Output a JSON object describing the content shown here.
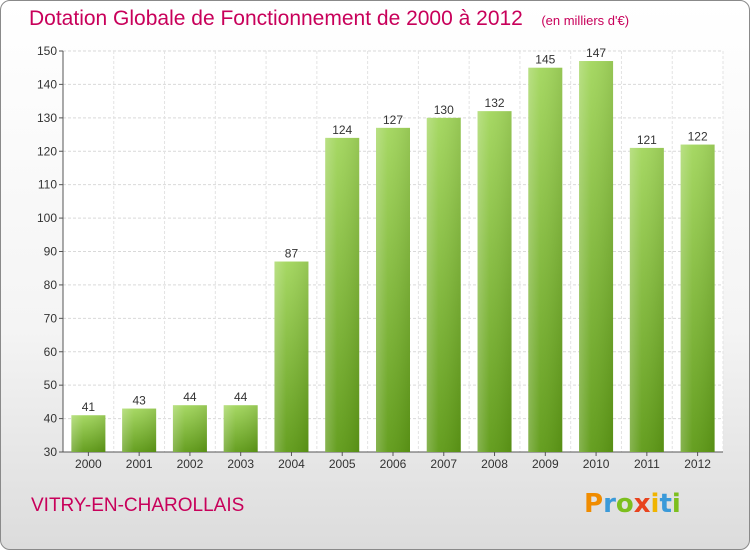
{
  "header": {
    "title": "Dotation Globale de Fonctionnement de 2000 à 2012",
    "unit": "(en milliers d'€)"
  },
  "footer": {
    "place": "VITRY-EN-CHAROLLAIS",
    "logo_letters": [
      "P",
      "r",
      "o",
      "x",
      "i",
      "t",
      "i"
    ],
    "logo_colors": [
      "#f08c00",
      "#3a9ad9",
      "#7cbf1e",
      "#e8431e",
      "#f0b400",
      "#3a9ad9",
      "#7cbf1e"
    ]
  },
  "colors": {
    "title": "#c8005a",
    "bar_light": "#a2d65c",
    "bar_dark": "#5e9a16"
  },
  "chart_data": {
    "type": "bar",
    "title": "Dotation Globale de Fonctionnement de 2000 à 2012",
    "subtitle": "(en milliers d'€)",
    "categories": [
      "2000",
      "2001",
      "2002",
      "2003",
      "2004",
      "2005",
      "2006",
      "2007",
      "2008",
      "2009",
      "2010",
      "2011",
      "2012"
    ],
    "values": [
      41,
      43,
      44,
      44,
      87,
      124,
      127,
      130,
      132,
      145,
      147,
      121,
      122
    ],
    "ylim": [
      30,
      150
    ],
    "yticks": [
      30,
      40,
      50,
      60,
      70,
      80,
      90,
      100,
      110,
      120,
      130,
      140,
      150
    ],
    "grid": true,
    "legend": "none"
  }
}
